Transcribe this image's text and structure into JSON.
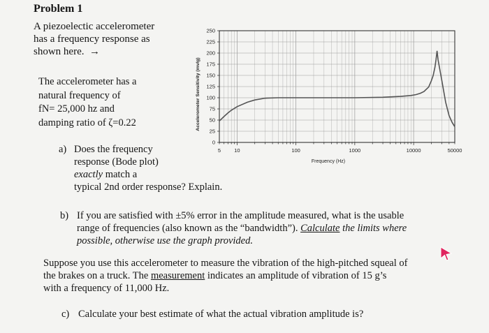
{
  "problem": {
    "title": "Problem 1",
    "intro_lines": [
      "A piezoelectic accelerometer",
      "has a frequency response as",
      "shown here."
    ],
    "arrow": "→",
    "info_lines": [
      "The accelerometer has a",
      "natural frequency of",
      "fN= 25,000 hz and",
      "damping ratio of ζ=0.22"
    ]
  },
  "question_a": {
    "label": "a)",
    "line1": "Does the frequency",
    "line2": "response (Bode plot)",
    "line3_italic": "exactly",
    "line3_rest": " match a",
    "line4": "typical 2nd order response? Explain."
  },
  "question_b": {
    "label": "b)",
    "line1": "If you are satisfied with ±5% error in the amplitude measured, what is the usable",
    "line2_plain": "range of frequencies (also known as the “bandwidth”). ",
    "line2_ul": "Calculate",
    "line2_ital": " the limits where",
    "line3": "possible, otherwise use the graph provided."
  },
  "scenario": {
    "line1": "Suppose you use this accelerometer to measure the vibration of the high-pitched squeal of",
    "line2_pre": "the brakes on a truck. The ",
    "line2_ul": "measurement",
    "line2_post": " indicates an amplitude of vibration of  15 g’s",
    "line3": "with a frequency of 11,000 Hz."
  },
  "question_c": {
    "label": "c)",
    "text": "Calculate your best estimate of what the actual vibration amplitude is?"
  },
  "chart_data": {
    "type": "line",
    "xscale": "log",
    "xlim": [
      5,
      50000
    ],
    "ylim": [
      0,
      250
    ],
    "xticks": [
      5,
      10,
      100,
      1000,
      10000,
      50000
    ],
    "xtick_labels": [
      "5",
      "10",
      "100",
      "1000",
      "10000",
      "50000"
    ],
    "yticks": [
      0,
      25,
      50,
      75,
      100,
      125,
      150,
      175,
      200,
      225,
      250
    ],
    "ytick_labels": [
      "0",
      "25",
      "50",
      "75",
      "100",
      "125",
      "150",
      "175",
      "200",
      "225",
      "250"
    ],
    "xlabel": "Frequency (Hz)",
    "ylabel": "Accelerometer Sensitivity (mv/g)",
    "grid": true,
    "series": [
      {
        "x": [
          5,
          6,
          7,
          8,
          10,
          15,
          20,
          30,
          50,
          100,
          500,
          1000,
          3000,
          6000,
          9000,
          11000,
          13000,
          15000,
          18000,
          20000,
          21500,
          23000,
          24000,
          25000,
          26000,
          30000,
          35000,
          40000,
          45000,
          50000
        ],
        "y": [
          48,
          58,
          66,
          72,
          80,
          90,
          95,
          99,
          100,
          100,
          100,
          100,
          101,
          103,
          105,
          107,
          110,
          114,
          124,
          138,
          150,
          168,
          185,
          205,
          185,
          140,
          90,
          60,
          45,
          35
        ]
      }
    ],
    "colors": {
      "line": "#555555",
      "grid": "#9a9a9a",
      "frame": "#222222"
    }
  }
}
